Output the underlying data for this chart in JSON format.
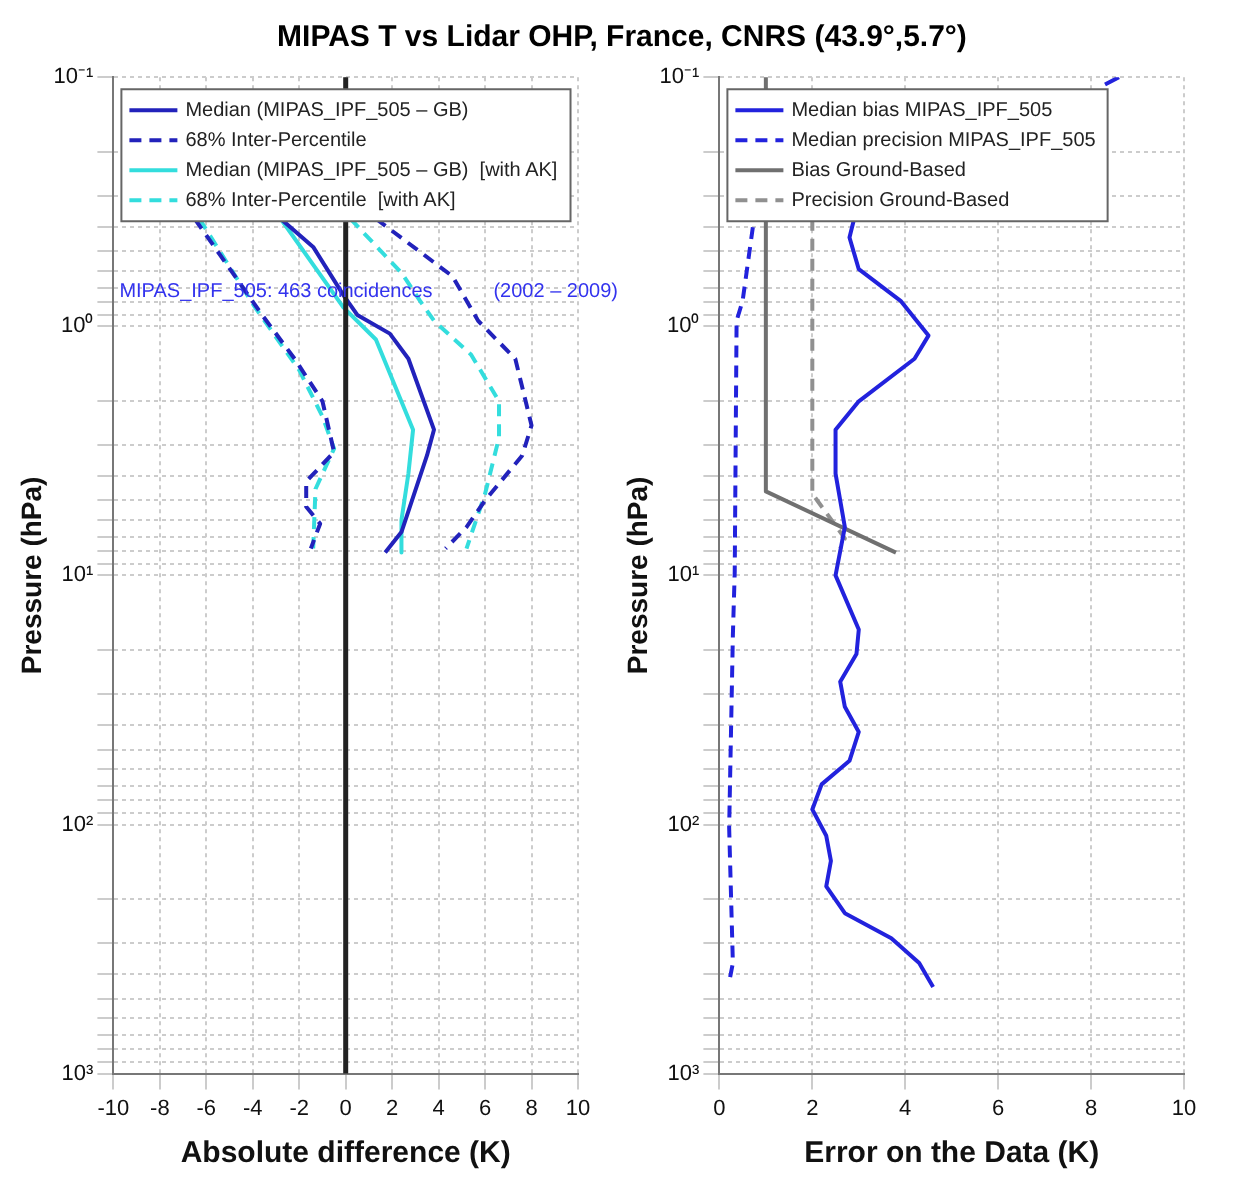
{
  "chart_data": [
    {
      "type": "line",
      "title": "MIPAS T vs Lidar OHP, France, CNRS (43.9°,5.7°)",
      "xlabel": "Absolute difference (K)",
      "ylabel": "Pressure (hPa)",
      "xlim": [
        -10,
        10
      ],
      "xticks": [
        -10,
        -8,
        -6,
        -4,
        -2,
        0,
        2,
        4,
        6,
        8,
        10
      ],
      "ylim": [
        1000,
        0.1
      ],
      "yticks": [
        {
          "value": 0.1,
          "label": "10⁻¹"
        },
        {
          "value": 0.2,
          "label": null
        },
        {
          "value": 0.3,
          "label": null
        },
        {
          "value": 0.4,
          "label": null
        },
        {
          "value": 0.5,
          "label": null
        },
        {
          "value": 0.6,
          "label": null
        },
        {
          "value": 0.7,
          "label": null
        },
        {
          "value": 0.8,
          "label": null
        },
        {
          "value": 0.9,
          "label": null
        },
        {
          "value": 1,
          "label": "10⁰"
        },
        {
          "value": 2,
          "label": null
        },
        {
          "value": 3,
          "label": null
        },
        {
          "value": 4,
          "label": null
        },
        {
          "value": 5,
          "label": null
        },
        {
          "value": 6,
          "label": null
        },
        {
          "value": 7,
          "label": null
        },
        {
          "value": 8,
          "label": null
        },
        {
          "value": 9,
          "label": null
        },
        {
          "value": 10,
          "label": "10¹"
        },
        {
          "value": 20,
          "label": null
        },
        {
          "value": 30,
          "label": null
        },
        {
          "value": 40,
          "label": null
        },
        {
          "value": 50,
          "label": null
        },
        {
          "value": 60,
          "label": null
        },
        {
          "value": 70,
          "label": null
        },
        {
          "value": 80,
          "label": null
        },
        {
          "value": 90,
          "label": null
        },
        {
          "value": 100,
          "label": "10²"
        },
        {
          "value": 200,
          "label": null
        },
        {
          "value": 300,
          "label": null
        },
        {
          "value": 400,
          "label": null
        },
        {
          "value": 500,
          "label": null
        },
        {
          "value": 600,
          "label": null
        },
        {
          "value": 700,
          "label": null
        },
        {
          "value": 800,
          "label": null
        },
        {
          "value": 900,
          "label": null
        },
        {
          "value": 1000,
          "label": "10³"
        }
      ],
      "log": "y",
      "grid": true,
      "legend": "top",
      "ref_lines": [
        {
          "axis": "x",
          "value": 0,
          "color": "#222222"
        }
      ],
      "annotations": [
        "MIPAS_IPF_505: 463 coincidences",
        "(2002 – 2009)"
      ],
      "series": [
        {
          "name": "Median (MIPAS_IPF_505 – GB)",
          "color": "#2222bb",
          "line_style": "solid",
          "x": [
            -2.8,
            -1.4,
            -0.1,
            0.5,
            1.9,
            2.7,
            3.8,
            3.5,
            2.4,
            1.7
          ],
          "values": [
            0.37,
            0.48,
            0.75,
            0.9,
            1.07,
            1.35,
            2.6,
            3.3,
            6.7,
            8.1
          ]
        },
        {
          "name": "68% Inter-Percentile",
          "color": "#2222bb",
          "line_style": "dashed",
          "x": [
            -6.5,
            -3.6,
            -2.2,
            -1.0,
            -0.5,
            -1.7,
            -1.7,
            -1.1,
            -1.5
          ],
          "values": [
            0.37,
            0.9,
            1.35,
            2.0,
            3.2,
            4.2,
            5.3,
            6.2,
            7.8
          ]
        },
        {
          "name": null,
          "color": "#2222bb",
          "line_style": "dashed",
          "x": [
            1.3,
            4.6,
            5.7,
            7.3,
            8.0,
            7.6,
            6.0,
            5.2,
            4.3
          ],
          "values": [
            0.37,
            0.63,
            0.95,
            1.35,
            2.5,
            3.3,
            5.0,
            6.4,
            7.8
          ]
        },
        {
          "name": "Median (MIPAS_IPF_505 – GB)  [with AK]",
          "color": "#33dddd",
          "line_style": "solid",
          "x": [
            -2.8,
            -0.1,
            1.3,
            2.9,
            2.7,
            2.4,
            2.4
          ],
          "values": [
            0.37,
            0.84,
            1.13,
            2.6,
            3.9,
            6.0,
            8.1
          ]
        },
        {
          "name": "68% Inter-Percentile  [with AK]",
          "color": "#33dddd",
          "line_style": "dashed",
          "x": [
            -6.3,
            -3.9,
            -2.0,
            -1.0,
            -0.5,
            -1.3,
            -1.4
          ],
          "values": [
            0.37,
            0.84,
            1.5,
            2.3,
            3.1,
            4.5,
            7.8
          ]
        },
        {
          "name": null,
          "color": "#33dddd",
          "line_style": "dashed",
          "x": [
            0.2,
            2.4,
            3.2,
            3.8,
            5.4,
            6.6,
            6.6,
            6.0,
            5.2
          ],
          "values": [
            0.37,
            0.61,
            0.79,
            0.95,
            1.3,
            2.0,
            2.8,
            4.7,
            7.8
          ]
        }
      ]
    },
    {
      "type": "line",
      "xlabel": "Error on the Data (K)",
      "ylabel": "Pressure (hPa)",
      "xlim": [
        0,
        10
      ],
      "xticks": [
        0,
        2,
        4,
        6,
        8,
        10
      ],
      "ylim": [
        1000,
        0.1
      ],
      "yticks": [
        {
          "value": 0.1,
          "label": "10⁻¹"
        },
        {
          "value": 0.2,
          "label": null
        },
        {
          "value": 0.3,
          "label": null
        },
        {
          "value": 0.4,
          "label": null
        },
        {
          "value": 0.5,
          "label": null
        },
        {
          "value": 0.6,
          "label": null
        },
        {
          "value": 0.7,
          "label": null
        },
        {
          "value": 0.8,
          "label": null
        },
        {
          "value": 0.9,
          "label": null
        },
        {
          "value": 1,
          "label": "10⁰"
        },
        {
          "value": 2,
          "label": null
        },
        {
          "value": 3,
          "label": null
        },
        {
          "value": 4,
          "label": null
        },
        {
          "value": 5,
          "label": null
        },
        {
          "value": 6,
          "label": null
        },
        {
          "value": 7,
          "label": null
        },
        {
          "value": 8,
          "label": null
        },
        {
          "value": 9,
          "label": null
        },
        {
          "value": 10,
          "label": "10¹"
        },
        {
          "value": 20,
          "label": null
        },
        {
          "value": 30,
          "label": null
        },
        {
          "value": 40,
          "label": null
        },
        {
          "value": 50,
          "label": null
        },
        {
          "value": 60,
          "label": null
        },
        {
          "value": 70,
          "label": null
        },
        {
          "value": 80,
          "label": null
        },
        {
          "value": 90,
          "label": null
        },
        {
          "value": 100,
          "label": "10²"
        },
        {
          "value": 200,
          "label": null
        },
        {
          "value": 300,
          "label": null
        },
        {
          "value": 400,
          "label": null
        },
        {
          "value": 500,
          "label": null
        },
        {
          "value": 600,
          "label": null
        },
        {
          "value": 700,
          "label": null
        },
        {
          "value": 800,
          "label": null
        },
        {
          "value": 900,
          "label": null
        },
        {
          "value": 1000,
          "label": "10³"
        }
      ],
      "log": "y",
      "grid": true,
      "legend": "top",
      "series": [
        {
          "name": "Median bias MIPAS_IPF_505",
          "color": "#2222dd",
          "line_style": "solid",
          "x": [
            8.6,
            8.3,
            null,
            2.9,
            2.8,
            3.0,
            3.9,
            4.5,
            4.2,
            3.0,
            2.5,
            2.5,
            2.7,
            2.5,
            3.0,
            2.95,
            2.6,
            2.7,
            3.0,
            2.8,
            2.2,
            2.0,
            2.3,
            2.4,
            2.3,
            2.7,
            3.7,
            4.3,
            4.6
          ],
          "values": [
            0.1,
            0.107,
            null,
            0.37,
            0.44,
            0.59,
            0.79,
            1.09,
            1.35,
            2.0,
            2.6,
            3.9,
            6.4,
            10,
            16.5,
            20.7,
            26.7,
            33.7,
            42.5,
            55.5,
            69,
            87,
            111,
            140,
            177,
            227,
            286,
            360,
            449
          ]
        },
        {
          "name": "Median precision MIPAS_IPF_505",
          "color": "#2222dd",
          "line_style": "dashed",
          "x": [
            0.72,
            0.5,
            0.37,
            0.33,
            0.29,
            0.21,
            0.29,
            0.21
          ],
          "values": [
            0.4,
            0.79,
            0.95,
            9.7,
            17.4,
            103,
            360,
            430
          ]
        },
        {
          "name": "Bias Ground-Based",
          "color": "#707070",
          "line_style": "solid",
          "x": [
            1.0,
            1.0,
            3.8
          ],
          "values": [
            0.1,
            4.6,
            8.1
          ]
        },
        {
          "name": "Precision Ground-Based",
          "color": "#909090",
          "line_style": "dashed",
          "x": [
            2.0,
            2.0,
            2.7,
            2.6
          ],
          "values": [
            0.37,
            4.7,
            7.1,
            7.8
          ]
        }
      ]
    }
  ]
}
